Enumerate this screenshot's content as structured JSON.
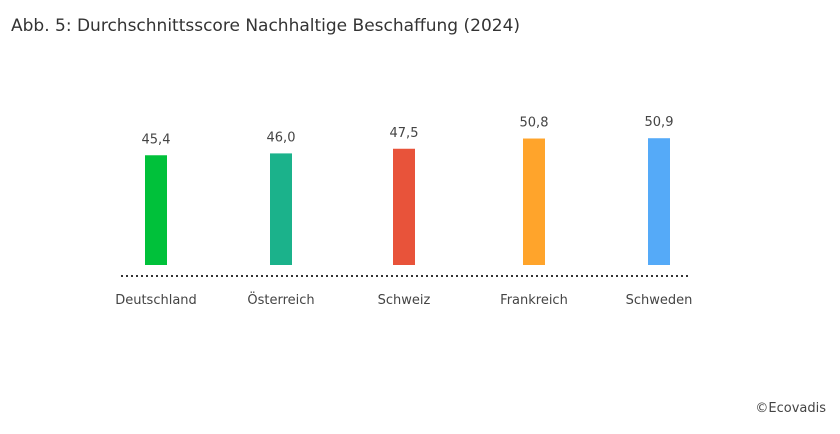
{
  "chart_data": {
    "type": "bar",
    "title": "Abb. 5: Durchschnittsscore Nachhaltige Beschaffung (2024)",
    "categories": [
      "Deutschland",
      "Österreich",
      "Schweiz",
      "Frankreich",
      "Schweden"
    ],
    "values": [
      45.4,
      46.0,
      47.5,
      50.8,
      50.9
    ],
    "value_labels": [
      "45,4",
      "46,0",
      "47,5",
      "50,8",
      "50,9"
    ],
    "colors": [
      "#00c13a",
      "#1bb28b",
      "#e8533a",
      "#ffa42b",
      "#55aaf8"
    ],
    "xlabel": "",
    "ylabel": "",
    "ylim": [
      10,
      55
    ],
    "grid": false,
    "legend": "none",
    "source": "©Ecovadis"
  }
}
